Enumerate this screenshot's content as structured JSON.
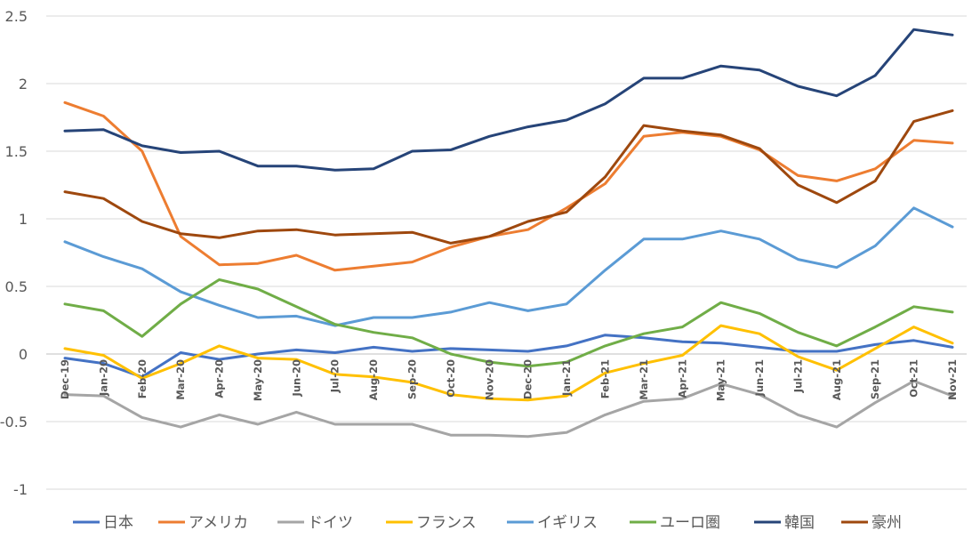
{
  "chart_data": {
    "type": "line",
    "title": "",
    "xlabel": "",
    "ylabel": "",
    "ylim": [
      -1,
      2.5
    ],
    "yticks": [
      "2.5",
      "2",
      "1.5",
      "1",
      "0.5",
      "0",
      "-0.5",
      "-1"
    ],
    "ytick_values": [
      2.5,
      2,
      1.5,
      1,
      0.5,
      0,
      -0.5,
      -1
    ],
    "grid": "horizontal",
    "legend_position": "bottom",
    "categories": [
      "Dec-19",
      "Jan-20",
      "Feb-20",
      "Mar-20",
      "Apr-20",
      "May-20",
      "Jun-20",
      "Jul-20",
      "Aug-20",
      "Sep-20",
      "Oct-20",
      "Nov-20",
      "Dec-20",
      "Jan-21",
      "Feb-21",
      "Mar-21",
      "Apr-21",
      "May-21",
      "Jun-21",
      "Jul-21",
      "Aug-21",
      "Sep-21",
      "Oct-21",
      "Nov-21"
    ],
    "series": [
      {
        "name": "日本",
        "color": "#4472C4",
        "values": [
          -0.03,
          -0.07,
          -0.17,
          0.01,
          -0.04,
          0.0,
          0.03,
          0.01,
          0.05,
          0.02,
          0.04,
          0.03,
          0.02,
          0.06,
          0.14,
          0.12,
          0.09,
          0.08,
          0.05,
          0.02,
          0.02,
          0.07,
          0.1,
          0.05
        ]
      },
      {
        "name": "アメリカ",
        "color": "#ED7D31",
        "values": [
          1.86,
          1.76,
          1.5,
          0.87,
          0.66,
          0.67,
          0.73,
          0.62,
          0.65,
          0.68,
          0.79,
          0.87,
          0.92,
          1.08,
          1.26,
          1.61,
          1.64,
          1.61,
          1.51,
          1.32,
          1.28,
          1.37,
          1.58,
          1.56
        ]
      },
      {
        "name": "ドイツ",
        "color": "#A5A5A5",
        "values": [
          -0.3,
          -0.31,
          -0.47,
          -0.54,
          -0.45,
          -0.52,
          -0.43,
          -0.52,
          -0.52,
          -0.52,
          -0.6,
          -0.6,
          -0.61,
          -0.58,
          -0.45,
          -0.35,
          -0.33,
          -0.22,
          -0.3,
          -0.45,
          -0.54,
          -0.36,
          -0.2,
          -0.31
        ]
      },
      {
        "name": "フランス",
        "color": "#FFC000",
        "values": [
          0.04,
          -0.01,
          -0.18,
          -0.07,
          0.06,
          -0.03,
          -0.04,
          -0.15,
          -0.17,
          -0.21,
          -0.3,
          -0.33,
          -0.34,
          -0.31,
          -0.14,
          -0.07,
          -0.01,
          0.21,
          0.15,
          -0.02,
          -0.12,
          0.04,
          0.2,
          0.08
        ]
      },
      {
        "name": "イギリス",
        "color": "#5B9BD5",
        "values": [
          0.83,
          0.72,
          0.63,
          0.46,
          0.36,
          0.27,
          0.28,
          0.21,
          0.27,
          0.27,
          0.31,
          0.38,
          0.32,
          0.37,
          0.62,
          0.85,
          0.85,
          0.91,
          0.85,
          0.7,
          0.64,
          0.8,
          1.08,
          0.94
        ]
      },
      {
        "name": "ユーロ圏",
        "color": "#70AD47",
        "values": [
          0.37,
          0.32,
          0.13,
          0.37,
          0.55,
          0.48,
          0.35,
          0.22,
          0.16,
          0.12,
          0.0,
          -0.06,
          -0.09,
          -0.06,
          0.06,
          0.15,
          0.2,
          0.38,
          0.3,
          0.16,
          0.06,
          0.2,
          0.35,
          0.31
        ]
      },
      {
        "name": "韓国",
        "color": "#264478",
        "values": [
          1.65,
          1.66,
          1.54,
          1.49,
          1.5,
          1.39,
          1.39,
          1.36,
          1.37,
          1.5,
          1.51,
          1.61,
          1.68,
          1.73,
          1.85,
          2.04,
          2.04,
          2.13,
          2.1,
          1.98,
          1.91,
          2.06,
          2.4,
          2.36
        ]
      },
      {
        "name": "豪州",
        "color": "#9E480E",
        "values": [
          1.2,
          1.15,
          0.98,
          0.89,
          0.86,
          0.91,
          0.92,
          0.88,
          0.89,
          0.9,
          0.82,
          0.87,
          0.98,
          1.05,
          1.31,
          1.69,
          1.65,
          1.62,
          1.52,
          1.25,
          1.12,
          1.28,
          1.72,
          1.8
        ]
      }
    ]
  }
}
